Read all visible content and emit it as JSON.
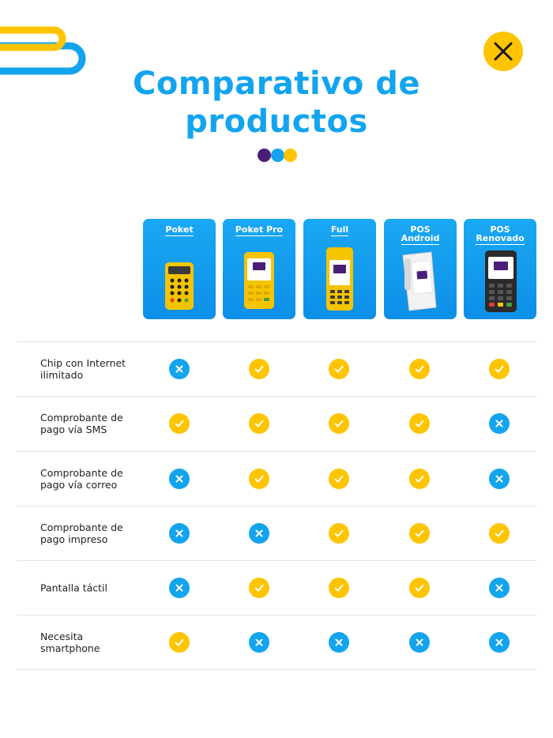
{
  "page": {
    "title_line1": "Comparativo de",
    "title_line2": "productos"
  },
  "colors": {
    "brand_blue": "#13a4ee",
    "brand_yellow": "#ffc400",
    "brand_purple": "#4a1e78"
  },
  "icons": {
    "close": "close-icon",
    "yes": "check-icon",
    "no": "x-icon"
  },
  "products": [
    {
      "name": "Poket",
      "device": "poket"
    },
    {
      "name": "Poket Pro",
      "device": "poket-pro"
    },
    {
      "name": "Full",
      "device": "full"
    },
    {
      "name": "POS Android",
      "line1": "POS",
      "line2": "Android",
      "device": "pos-android"
    },
    {
      "name": "POS Renovado",
      "line1": "POS",
      "line2": "Renovado",
      "device": "pos-renovado"
    }
  ],
  "features": [
    {
      "label": "Chip con Internet ilimitado",
      "values": [
        false,
        true,
        true,
        true,
        true
      ]
    },
    {
      "label": "Comprobante de pago vía SMS",
      "values": [
        true,
        true,
        true,
        true,
        false
      ]
    },
    {
      "label": "Comprobante de pago vía correo",
      "values": [
        false,
        true,
        true,
        true,
        false
      ]
    },
    {
      "label": "Comprobante de pago impreso",
      "values": [
        false,
        false,
        true,
        true,
        true
      ]
    },
    {
      "label": "Pantalla táctil",
      "values": [
        false,
        true,
        true,
        true,
        false
      ]
    },
    {
      "label": "Necesita smartphone",
      "values": [
        true,
        false,
        false,
        false,
        false
      ]
    }
  ]
}
